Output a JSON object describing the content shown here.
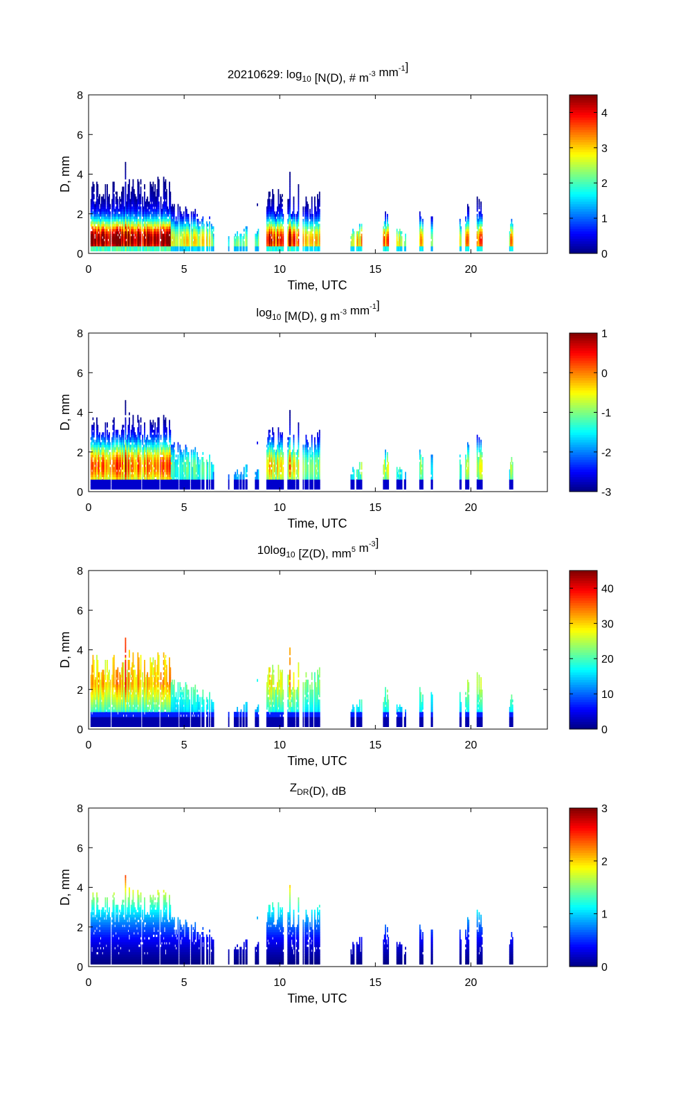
{
  "chart_data": [
    {
      "type": "heatmap",
      "id": "nd",
      "title_parts": [
        {
          "t": "20210629: log"
        },
        {
          "t": "10",
          "s": "sub"
        },
        {
          "t": " [N(D), # m"
        },
        {
          "t": "-3",
          "s": "sup"
        },
        {
          "t": " mm"
        },
        {
          "t": "-1",
          "s": "sup"
        },
        {
          "t": "]"
        }
      ],
      "title": "20210629: log10 [N(D), # m-3 mm-1]",
      "xlabel": "Time, UTC",
      "ylabel": "D, mm",
      "xlim": [
        0,
        24
      ],
      "ylim": [
        0,
        8
      ],
      "xticks": [
        0,
        5,
        10,
        15,
        20
      ],
      "yticks": [
        0,
        2,
        4,
        6,
        8
      ],
      "colorbar": {
        "range": [
          0,
          4.5
        ],
        "ticks": [
          0,
          1,
          2,
          3,
          4
        ],
        "colormap": "jet"
      },
      "pattern": "nd"
    },
    {
      "type": "heatmap",
      "id": "md",
      "title_parts": [
        {
          "t": "log"
        },
        {
          "t": "10",
          "s": "sub"
        },
        {
          "t": " [M(D), g m"
        },
        {
          "t": "-3",
          "s": "sup"
        },
        {
          "t": " mm"
        },
        {
          "t": "-1",
          "s": "sup"
        },
        {
          "t": "]"
        }
      ],
      "title": "log10 [M(D), g m-3 mm-1]",
      "xlabel": "Time, UTC",
      "ylabel": "D, mm",
      "xlim": [
        0,
        24
      ],
      "ylim": [
        0,
        8
      ],
      "xticks": [
        0,
        5,
        10,
        15,
        20
      ],
      "yticks": [
        0,
        2,
        4,
        6,
        8
      ],
      "colorbar": {
        "range": [
          -3,
          1
        ],
        "ticks": [
          -3,
          -2,
          -1,
          0,
          1
        ],
        "colormap": "jet"
      },
      "pattern": "md"
    },
    {
      "type": "heatmap",
      "id": "zd",
      "title_parts": [
        {
          "t": "10log"
        },
        {
          "t": "10",
          "s": "sub"
        },
        {
          "t": " [Z(D),  mm"
        },
        {
          "t": "5",
          "s": "sup"
        },
        {
          "t": " m"
        },
        {
          "t": "-3",
          "s": "sup"
        },
        {
          "t": "]"
        }
      ],
      "title": "10log10 [Z(D), mm5 m-3]",
      "xlabel": "Time, UTC",
      "ylabel": "D, mm",
      "xlim": [
        0,
        24
      ],
      "ylim": [
        0,
        8
      ],
      "xticks": [
        0,
        5,
        10,
        15,
        20
      ],
      "yticks": [
        0,
        2,
        4,
        6,
        8
      ],
      "colorbar": {
        "range": [
          0,
          45
        ],
        "ticks": [
          0,
          10,
          20,
          30,
          40
        ],
        "colormap": "jet"
      },
      "pattern": "zd"
    },
    {
      "type": "heatmap",
      "id": "zdr",
      "title_parts": [
        {
          "t": "Z"
        },
        {
          "t": "DR",
          "s": "sub"
        },
        {
          "t": "(D), dB"
        }
      ],
      "title": "ZDR(D), dB",
      "xlabel": "Time, UTC",
      "ylabel": "D, mm",
      "xlim": [
        0,
        24
      ],
      "ylim": [
        0,
        8
      ],
      "xticks": [
        0,
        5,
        10,
        15,
        20
      ],
      "yticks": [
        0,
        2,
        4,
        6,
        8
      ],
      "colorbar": {
        "range": [
          0,
          3
        ],
        "ticks": [
          0,
          1,
          2,
          3
        ],
        "colormap": "jet"
      },
      "pattern": "zdr"
    }
  ],
  "rain_events": [
    {
      "start": 0.1,
      "end": 4.3,
      "max_d": 3.9,
      "intensity": 1.0
    },
    {
      "start": 4.3,
      "end": 5.2,
      "max_d": 2.6,
      "intensity": 0.55
    },
    {
      "start": 5.2,
      "end": 6.5,
      "max_d": 2.2,
      "intensity": 0.6
    },
    {
      "start": 7.6,
      "end": 8.3,
      "max_d": 1.3,
      "intensity": 0.5
    },
    {
      "start": 8.7,
      "end": 8.9,
      "max_d": 1.3,
      "intensity": 0.45
    },
    {
      "start": 9.3,
      "end": 10.2,
      "max_d": 3.3,
      "intensity": 0.85
    },
    {
      "start": 10.4,
      "end": 11.0,
      "max_d": 3.5,
      "intensity": 0.8
    },
    {
      "start": 11.2,
      "end": 12.1,
      "max_d": 3.1,
      "intensity": 0.6
    },
    {
      "start": 13.7,
      "end": 13.9,
      "max_d": 1.3,
      "intensity": 0.6
    },
    {
      "start": 14.0,
      "end": 14.3,
      "max_d": 1.5,
      "intensity": 0.7
    },
    {
      "start": 15.4,
      "end": 15.7,
      "max_d": 2.1,
      "intensity": 0.75
    },
    {
      "start": 16.1,
      "end": 16.4,
      "max_d": 1.3,
      "intensity": 0.6
    },
    {
      "start": 16.5,
      "end": 16.6,
      "max_d": 1.0,
      "intensity": 0.55
    },
    {
      "start": 17.3,
      "end": 17.5,
      "max_d": 2.3,
      "intensity": 0.75
    },
    {
      "start": 17.9,
      "end": 18.0,
      "max_d": 1.9,
      "intensity": 0.55
    },
    {
      "start": 19.4,
      "end": 19.5,
      "max_d": 1.8,
      "intensity": 0.55
    },
    {
      "start": 19.7,
      "end": 19.9,
      "max_d": 2.6,
      "intensity": 0.7
    },
    {
      "start": 20.3,
      "end": 20.6,
      "max_d": 2.9,
      "intensity": 0.8
    },
    {
      "start": 22.0,
      "end": 22.2,
      "max_d": 1.7,
      "intensity": 0.7
    }
  ]
}
